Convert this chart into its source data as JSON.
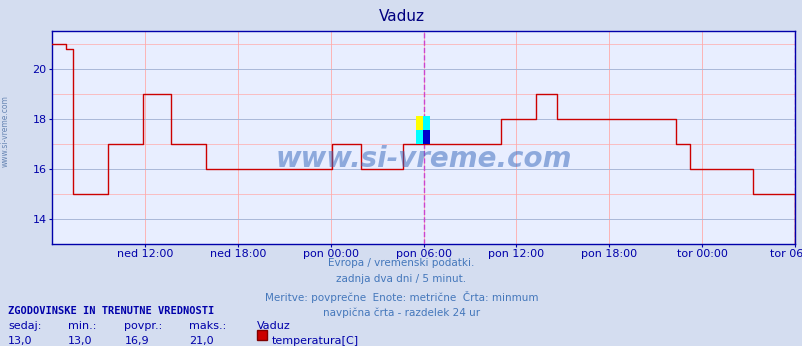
{
  "title": "Vaduz",
  "title_color": "#000080",
  "bg_color": "#d4ddf0",
  "plot_bg_color": "#e8eeff",
  "line_color": "#cc0000",
  "grid_color_major": "#aab8d8",
  "grid_color_minor": "#ffaaaa",
  "axis_color": "#0000aa",
  "vline_color": "#cc44cc",
  "tick_color": "#0000aa",
  "ylim": [
    13.0,
    21.5
  ],
  "yticks": [
    14,
    16,
    18,
    20
  ],
  "text_color": "#4477bb",
  "watermark": "www.si-vreme.com",
  "watermark_color": "#3366bb",
  "footer_lines": [
    "Evropa / vremenski podatki.",
    "zadnja dva dni / 5 minut.",
    "Meritve: povprečne  Enote: metrične  Črta: minmum",
    "navpična črta - razdelek 24 ur"
  ],
  "stats_header": "ZGODOVINSKE IN TRENUTNE VREDNOSTI",
  "stats_labels": [
    "sedaj:",
    "min.:",
    "povpr.:",
    "maks.:"
  ],
  "stats_values": [
    "13,0",
    "13,0",
    "16,9",
    "21,0"
  ],
  "stats_location": "Vaduz",
  "stats_series": "temperatura[C]",
  "xtick_labels": [
    "ned 12:00",
    "ned 18:00",
    "pon 00:00",
    "pon 06:00",
    "pon 12:00",
    "pon 18:00",
    "tor 00:00",
    "tor 06:00"
  ],
  "xtick_positions": [
    0.125,
    0.25,
    0.375,
    0.5,
    0.625,
    0.75,
    0.875,
    1.0
  ],
  "vline_positions": [
    0.5,
    1.0
  ],
  "temperature_data": [
    21,
    21,
    20.8,
    15,
    15,
    15,
    15,
    15,
    17,
    17,
    17,
    17,
    17,
    19,
    19,
    19,
    19,
    17,
    17,
    17,
    17,
    17,
    16,
    16,
    16,
    16,
    16,
    16,
    16,
    16,
    16,
    16,
    16,
    16,
    16,
    16,
    16,
    16,
    16,
    16,
    17,
    17,
    17,
    17,
    16,
    16,
    16,
    16,
    16,
    16,
    17,
    17,
    17,
    17,
    17,
    17,
    17,
    17,
    17,
    17,
    17,
    17,
    17,
    17,
    18,
    18,
    18,
    18,
    18,
    19,
    19,
    19,
    18,
    18,
    18,
    18,
    18,
    18,
    18,
    18,
    18,
    18,
    18,
    18,
    18,
    18,
    18,
    18,
    18,
    17,
    17,
    16,
    16,
    16,
    16,
    16,
    16,
    16,
    16,
    16,
    15,
    15,
    15,
    15,
    15,
    15,
    13
  ]
}
